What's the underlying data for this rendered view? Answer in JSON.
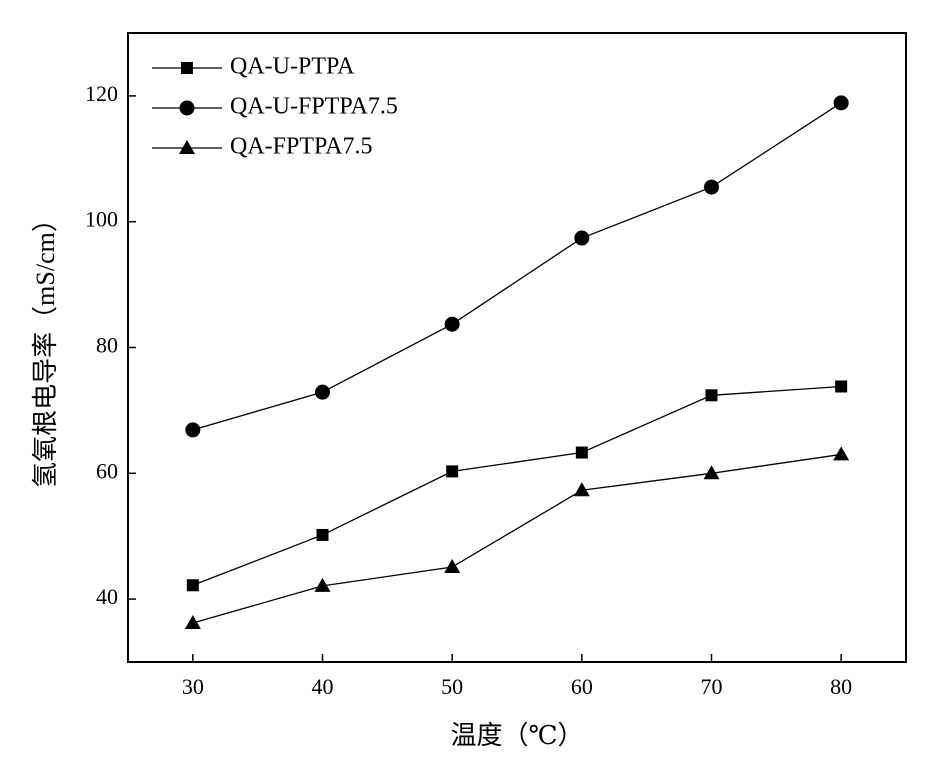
{
  "chart_data": {
    "type": "line",
    "x_label": "温度（℃）",
    "y_label": "氢氧根电导率（mS/cm）",
    "x": [
      30,
      40,
      50,
      60,
      70,
      80
    ],
    "xlim": [
      25,
      85
    ],
    "xticks": [
      30,
      40,
      50,
      60,
      70,
      80
    ],
    "ylim": [
      30,
      130
    ],
    "yticks": [
      40,
      60,
      80,
      100,
      120
    ],
    "legend": "top-left",
    "series": [
      {
        "name": "QA-U-PTPA",
        "color": "#000000",
        "marker": "square",
        "values": [
          42.2,
          50.2,
          60.3,
          63.3,
          72.4,
          73.8
        ]
      },
      {
        "name": "QA-U-FPTPA7.5",
        "color": "#000000",
        "marker": "circle",
        "values": [
          66.9,
          72.9,
          83.7,
          97.4,
          105.5,
          118.9
        ]
      },
      {
        "name": "QA-FPTPA7.5",
        "color": "#000000",
        "marker": "triangle",
        "values": [
          36.2,
          42.1,
          45.1,
          57.3,
          60.0,
          63.0
        ]
      }
    ]
  }
}
